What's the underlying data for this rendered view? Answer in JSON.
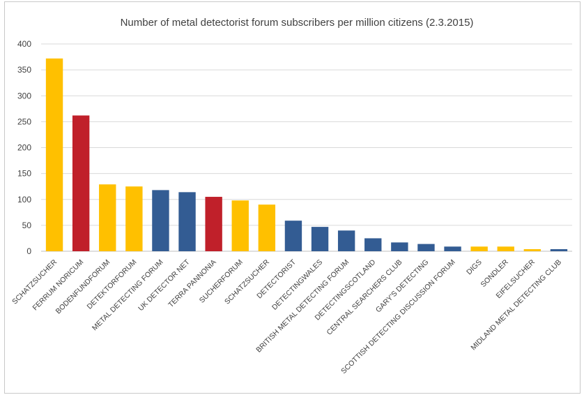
{
  "chart_data": {
    "type": "bar",
    "title": "Number of metal detectorist forum subscribers per million citizens (2.3.2015)",
    "xlabel": "",
    "ylabel": "",
    "ylim": [
      0,
      400
    ],
    "yticks": [
      0,
      50,
      100,
      150,
      200,
      250,
      300,
      350,
      400
    ],
    "grid": true,
    "categories": [
      "SCHATZSUCHER",
      "FERRUM NORICUM",
      "BODENFUNDFORUM",
      "DETEKTORFORUM",
      "METAL DETECTING FORUM",
      "UK DETECTOR NET",
      "TERRA PANNONIA",
      "SUCHERFORUM",
      "SCHATZSUCHER",
      "DETECTORIST",
      "DETECTINGWALES",
      "BRITISH METAL DETECTING FORUM",
      "DETECTINGSCOTLAND",
      "CENTRAL SEARCHERS CLUB",
      "GARY'S DETECTING",
      "SCOTTISH DETECTING DISCUSSION FORUM",
      "DIGS",
      "SONDLER",
      "EIFELSUCHER",
      "MIDLAND METAL DETECTING CLUB"
    ],
    "values": [
      372,
      262,
      129,
      125,
      118,
      114,
      105,
      98,
      90,
      59,
      47,
      40,
      25,
      17,
      14,
      9,
      9,
      9,
      4,
      4
    ],
    "bar_colors": [
      "#FFC000",
      "#C0202A",
      "#FFC000",
      "#FFC000",
      "#335C93",
      "#335C93",
      "#C0202A",
      "#FFC000",
      "#FFC000",
      "#335C93",
      "#335C93",
      "#335C93",
      "#335C93",
      "#335C93",
      "#335C93",
      "#335C93",
      "#FFC000",
      "#FFC000",
      "#FFC000",
      "#335C93"
    ]
  }
}
